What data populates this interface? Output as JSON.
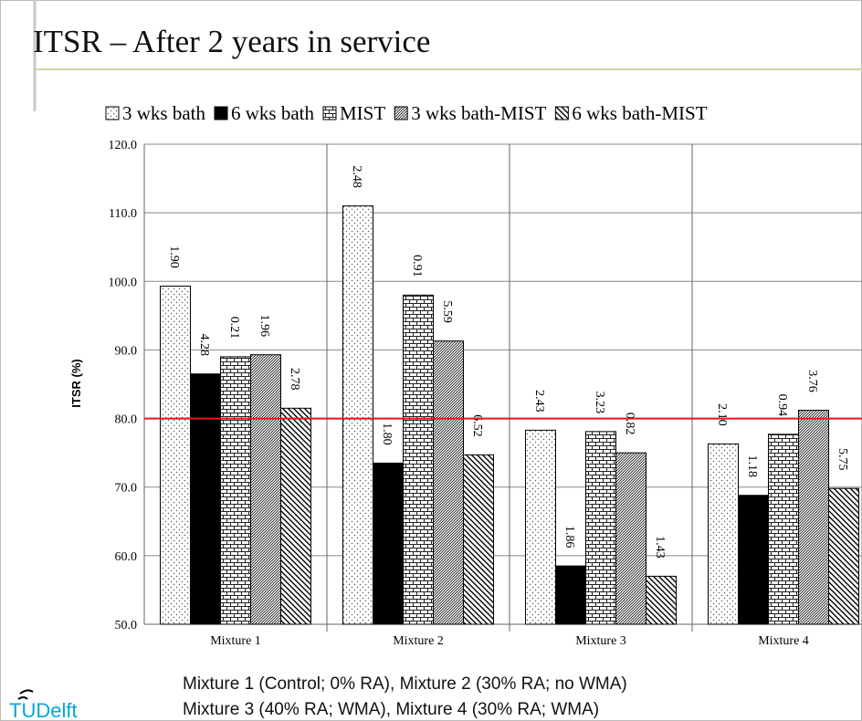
{
  "slide": {
    "title": "ITSR – After 2 years in service",
    "footnotes": [
      "Mixture 1 (Control; 0% RA), Mixture 2 (30% RA; no WMA)",
      "Mixture 3 (40% RA; WMA), Mixture 4 (30% RA; WMA)"
    ],
    "logo": "TUDelft"
  },
  "chart_data": {
    "type": "bar",
    "y_label": "ITSR (%)",
    "categories": [
      "Mixture 1",
      "Mixture 2",
      "Mixture 3",
      "Mixture 4"
    ],
    "series": [
      {
        "name": "3 wks bath",
        "color": "#555555",
        "pattern": "dots",
        "values": [
          99.3,
          111.0,
          78.3,
          76.3
        ],
        "labels": [
          "1.90",
          "2.48",
          "2.43",
          "2.10"
        ]
      },
      {
        "name": "6 wks bath",
        "color": "#000000",
        "pattern": "solid",
        "values": [
          86.5,
          73.5,
          58.5,
          68.8
        ],
        "labels": [
          "4.28",
          "1.80",
          "1.86",
          "1.18"
        ]
      },
      {
        "name": "MIST",
        "color": "#222222",
        "pattern": "brick",
        "values": [
          89.0,
          98.0,
          78.1,
          77.7
        ],
        "labels": [
          "0.21",
          "0.91",
          "3.23",
          "0.94"
        ]
      },
      {
        "name": "3 wks bath-MIST",
        "color": "#222222",
        "pattern": "dense-diag",
        "values": [
          89.3,
          91.3,
          75.0,
          81.2
        ],
        "labels": [
          "1.96",
          "5.59",
          "0.82",
          "3.76"
        ]
      },
      {
        "name": "6 wks bath-MIST",
        "color": "#000000",
        "pattern": "diag",
        "values": [
          81.5,
          74.7,
          57.0,
          69.8
        ],
        "labels": [
          "2.78",
          "6.52",
          "1.43",
          "5.75"
        ]
      }
    ],
    "ylim": [
      50,
      120
    ],
    "yticks": [
      {
        "value": 50,
        "label": "50.0"
      },
      {
        "value": 60,
        "label": "60.0"
      },
      {
        "value": 70,
        "label": "70.0"
      },
      {
        "value": 80,
        "label": "80.0"
      },
      {
        "value": 90,
        "label": "90.0"
      },
      {
        "value": 100,
        "label": "100.0"
      },
      {
        "value": 110,
        "label": "110.0"
      },
      {
        "value": 120,
        "label": "120.0"
      }
    ],
    "grid": true,
    "reference_line": {
      "value": 80,
      "color": "#e8141c"
    }
  }
}
